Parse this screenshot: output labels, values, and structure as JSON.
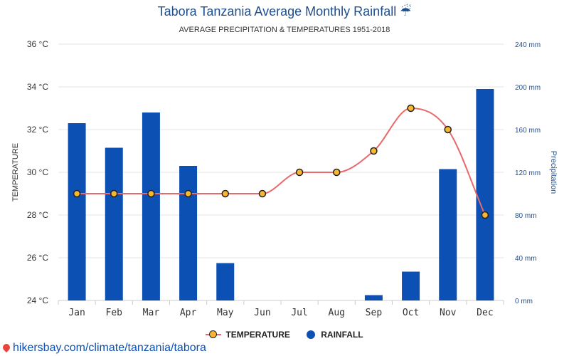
{
  "header": {
    "title": "Tabora Tanzania Average Monthly Rainfall ☔",
    "subtitle": "AVERAGE PRECIPITATION & TEMPERATURES 1951-2018"
  },
  "chart_data": {
    "type": "bar",
    "categories": [
      "Jan",
      "Feb",
      "Mar",
      "Apr",
      "May",
      "Jun",
      "Jul",
      "Aug",
      "Sep",
      "Oct",
      "Nov",
      "Dec"
    ],
    "series": [
      {
        "name": "TEMPERATURE",
        "type": "line",
        "axis": "left",
        "color": "#e8696b",
        "marker_color": "#f7b731",
        "values": [
          29,
          29,
          29,
          29,
          29,
          29,
          30,
          30,
          31,
          33,
          32,
          28
        ]
      },
      {
        "name": "RAINFALL",
        "type": "bar",
        "axis": "right",
        "color": "#0c50b4",
        "values": [
          166,
          143,
          176,
          126,
          35,
          0,
          0,
          0,
          5,
          27,
          123,
          198
        ]
      }
    ],
    "ylabel": "TEMPERATURE",
    "y2label": "Precipitation",
    "ylim": [
      24,
      36
    ],
    "y2lim": [
      0,
      240
    ],
    "y_ticks": [
      "24 °C",
      "26 °C",
      "28 °C",
      "30 °C",
      "32 °C",
      "34 °C",
      "36 °C"
    ],
    "y2_ticks": [
      "0 mm",
      "40 mm",
      "80 mm",
      "120 mm",
      "160 mm",
      "200 mm",
      "240 mm"
    ],
    "grid": true,
    "legend": "bottom-center"
  },
  "legend": {
    "temperature": "TEMPERATURE",
    "rainfall": "RAINFALL"
  },
  "footer": {
    "link": "hikersbay.com/climate/tanzania/tabora"
  },
  "icons": {
    "legend_temperature": "line-marker-icon",
    "legend_rainfall": "circle-icon",
    "footer": "map-pin-icon"
  }
}
